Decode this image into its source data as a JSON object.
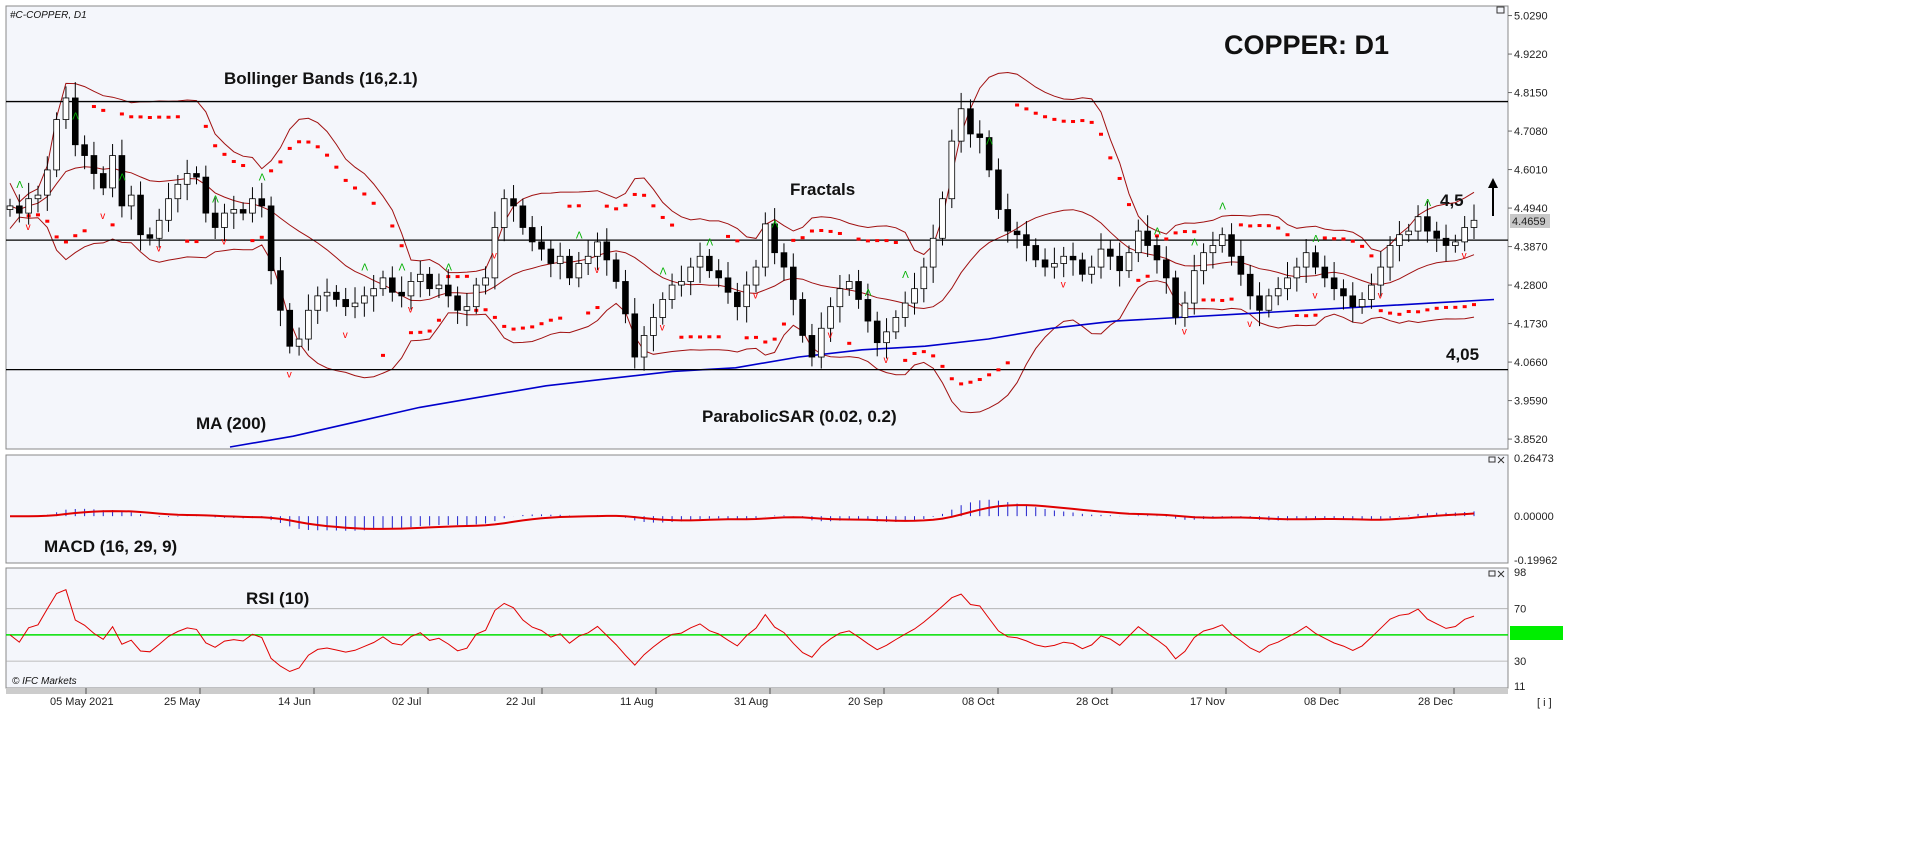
{
  "window": {
    "symbol": "#C-COPPER, D1",
    "title": "COPPER: D1",
    "brand": "© IFC Markets",
    "info_button": "[ i ]",
    "current_price": "4.4659"
  },
  "annotations": {
    "bollinger": "Bollinger Bands (16,2.1)",
    "fractals": "Fractals",
    "ma": "MA (200)",
    "psar": "ParabolicSAR (0.02, 0.2)",
    "resistance": "4,5",
    "support": "4,05",
    "macd": "MACD (16, 29, 9)",
    "rsi": "RSI (10)"
  },
  "price_axis": {
    "ticks": [
      "5.0290",
      "4.9220",
      "4.8150",
      "4.7080",
      "4.6010",
      "4.4940",
      "4.3870",
      "4.2800",
      "4.1730",
      "4.0660",
      "3.9590",
      "3.8520"
    ]
  },
  "macd_axis": {
    "ticks": [
      "0.26473",
      "0.00000",
      "-0.19962"
    ]
  },
  "rsi_axis": {
    "ticks": [
      "98",
      "70",
      "50",
      "30",
      "11"
    ]
  },
  "date_axis": {
    "ticks": [
      "05 May 2021",
      "25 May",
      "14 Jun",
      "02 Jul",
      "22 Jul",
      "11 Aug",
      "31 Aug",
      "20 Sep",
      "08 Oct",
      "28 Oct",
      "17 Nov",
      "08 Dec",
      "28 Dec"
    ]
  },
  "colors": {
    "bull": "#ffffff",
    "bear": "#000000",
    "ma": "#0000cc",
    "bands": "#a01010",
    "psar": "#ff0000",
    "fractal_up": "#00b000",
    "fractal_down": "#ff0000",
    "macd_hist": "#2020cc",
    "macd_signal": "#e00000",
    "rsi_line": "#e00000",
    "rsi_mid": "#00e000"
  },
  "chart_data": [
    {
      "type": "candlestick",
      "title": "COPPER: D1",
      "ylim": [
        3.83,
        5.05
      ],
      "levels": [
        4.79,
        4.405,
        4.045
      ],
      "close": [
        4.5,
        4.48,
        4.52,
        4.53,
        4.6,
        4.74,
        4.8,
        4.67,
        4.64,
        4.59,
        4.55,
        4.64,
        4.5,
        4.53,
        4.42,
        4.41,
        4.46,
        4.52,
        4.56,
        4.59,
        4.58,
        4.48,
        4.44,
        4.48,
        4.49,
        4.48,
        4.52,
        4.5,
        4.32,
        4.21,
        4.11,
        4.13,
        4.21,
        4.25,
        4.26,
        4.24,
        4.22,
        4.23,
        4.25,
        4.27,
        4.3,
        4.26,
        4.25,
        4.29,
        4.31,
        4.27,
        4.28,
        4.25,
        4.21,
        4.22,
        4.28,
        4.3,
        4.44,
        4.52,
        4.5,
        4.44,
        4.4,
        4.38,
        4.34,
        4.36,
        4.3,
        4.34,
        4.36,
        4.4,
        4.35,
        4.29,
        4.2,
        4.08,
        4.14,
        4.19,
        4.24,
        4.28,
        4.29,
        4.33,
        4.36,
        4.32,
        4.3,
        4.26,
        4.22,
        4.28,
        4.33,
        4.45,
        4.37,
        4.33,
        4.24,
        4.14,
        4.08,
        4.16,
        4.22,
        4.27,
        4.29,
        4.24,
        4.18,
        4.12,
        4.15,
        4.19,
        4.23,
        4.27,
        4.33,
        4.41,
        4.52,
        4.68,
        4.77,
        4.7,
        4.69,
        4.6,
        4.49,
        4.43,
        4.42,
        4.39,
        4.35,
        4.33,
        4.34,
        4.36,
        4.35,
        4.31,
        4.33,
        4.38,
        4.36,
        4.32,
        4.37,
        4.43,
        4.39,
        4.35,
        4.3,
        4.19,
        4.23,
        4.32,
        4.37,
        4.39,
        4.42,
        4.36,
        4.31,
        4.25,
        4.21,
        4.25,
        4.27,
        4.3,
        4.33,
        4.37,
        4.33,
        4.3,
        4.27,
        4.25,
        4.22,
        4.24,
        4.28,
        4.33,
        4.39,
        4.42,
        4.43,
        4.47,
        4.43,
        4.41,
        4.39,
        4.4,
        4.44,
        4.46
      ],
      "fractals_up_index": [
        1,
        7,
        12,
        22,
        27,
        38,
        42,
        47,
        61,
        70,
        75,
        82,
        92,
        96,
        105,
        123,
        127,
        130,
        140,
        152
      ],
      "fractals_down_index": [
        2,
        10,
        16,
        23,
        30,
        36,
        43,
        52,
        63,
        70,
        80,
        88,
        94,
        113,
        126,
        133,
        140,
        147,
        156
      ],
      "ma200": [
        3.83,
        3.86,
        3.9,
        3.94,
        3.97,
        4.0,
        4.02,
        4.04,
        4.05,
        4.08,
        4.1,
        4.11,
        4.13,
        4.16,
        4.18,
        4.19,
        4.2,
        4.21,
        4.22,
        4.23,
        4.24
      ]
    },
    {
      "type": "bar",
      "title": "MACD (16, 29, 9)",
      "ylim": [
        -0.19962,
        0.26473
      ]
    },
    {
      "type": "line",
      "title": "RSI (10)",
      "ylim": [
        11,
        98
      ],
      "reference_levels": [
        30,
        50,
        70
      ]
    }
  ]
}
